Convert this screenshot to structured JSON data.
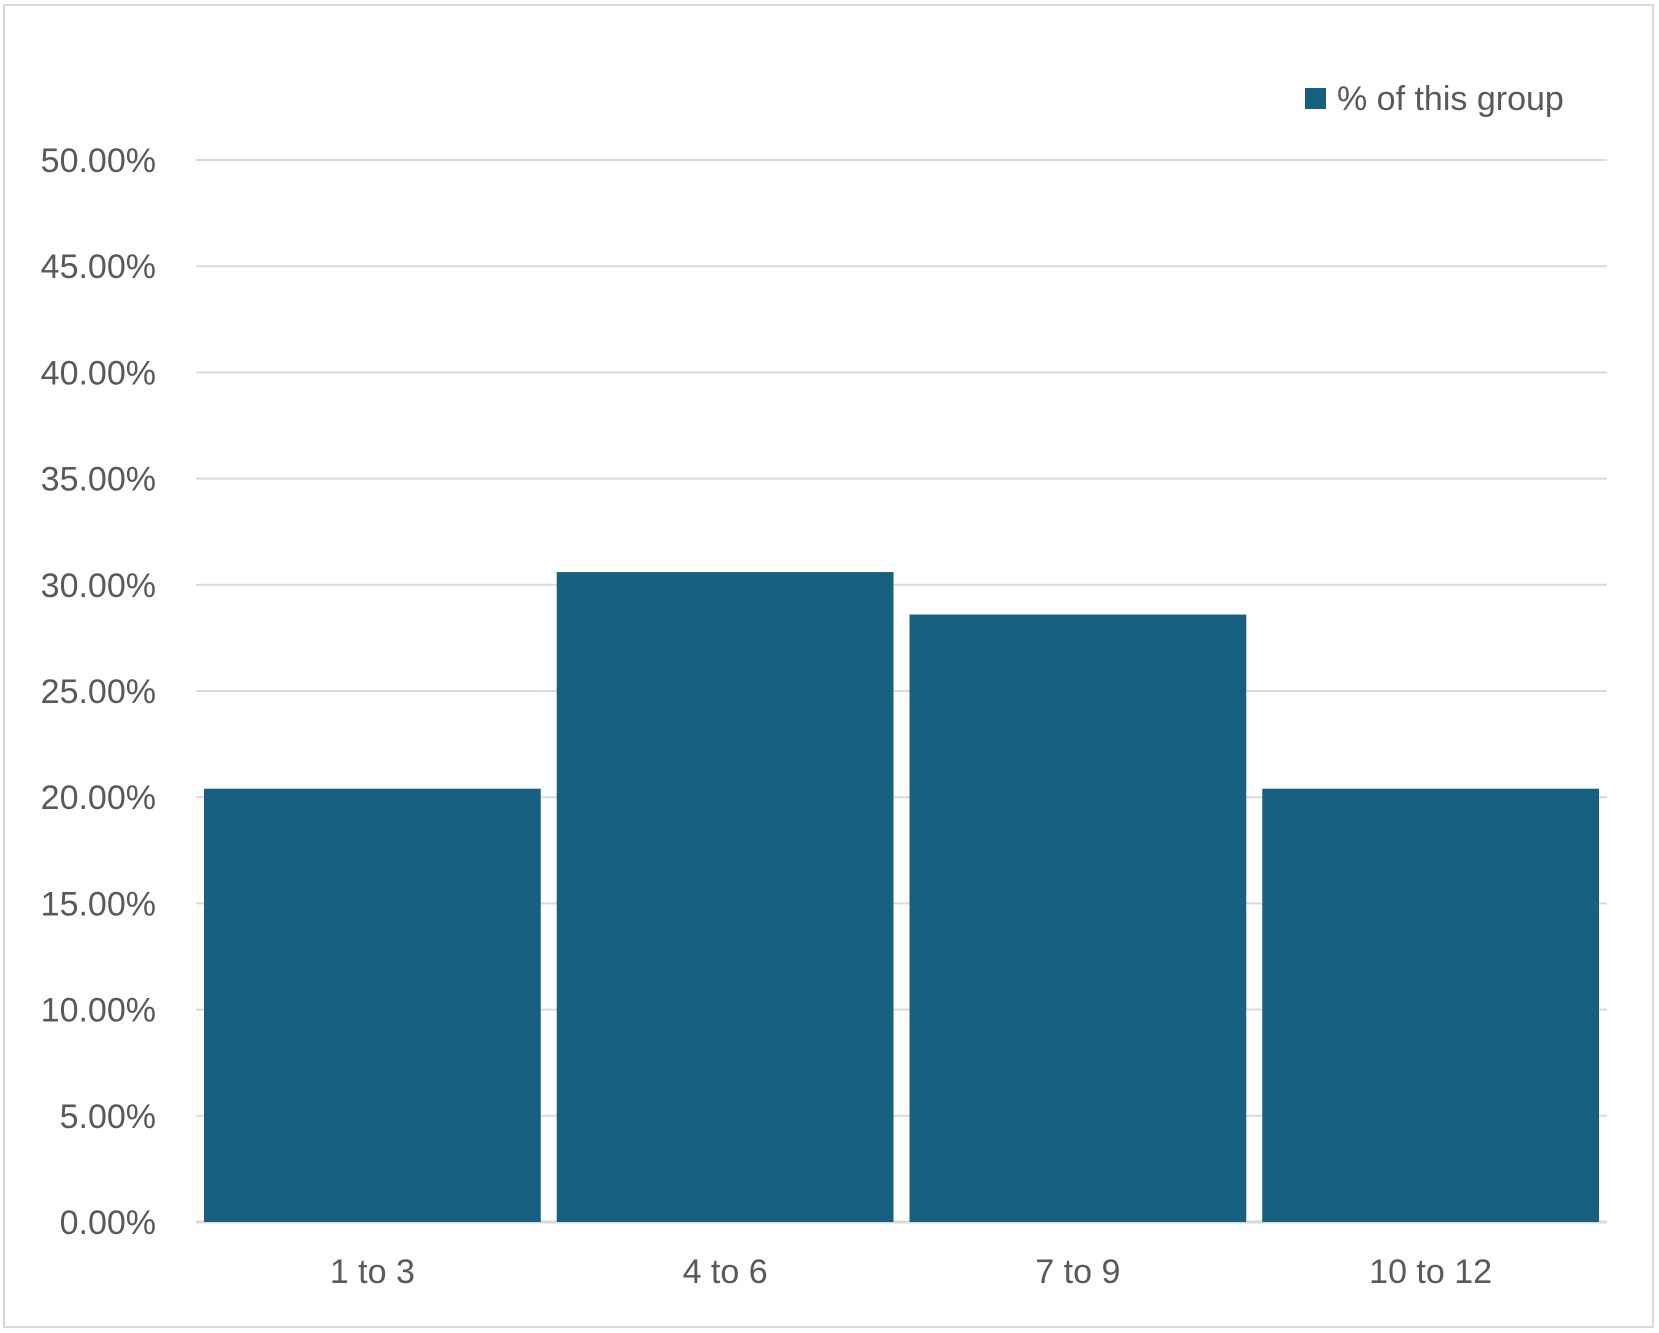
{
  "chart_data": {
    "type": "bar",
    "categories": [
      "1 to 3",
      "4 to 6",
      "7 to 9",
      "10 to 12"
    ],
    "series": [
      {
        "name": "% of this group",
        "values": [
          20.4,
          30.6,
          28.6,
          20.4
        ]
      }
    ],
    "ylim": [
      0,
      50
    ],
    "yticks": [
      "0.00%",
      "5.00%",
      "10.00%",
      "15.00%",
      "20.00%",
      "25.00%",
      "30.00%",
      "35.00%",
      "40.00%",
      "45.00%",
      "50.00%"
    ],
    "grid": true,
    "legend_position": "top-right",
    "colors": {
      "bar": "#17607f",
      "grid": "#d9d9d9",
      "text": "#595959"
    }
  }
}
